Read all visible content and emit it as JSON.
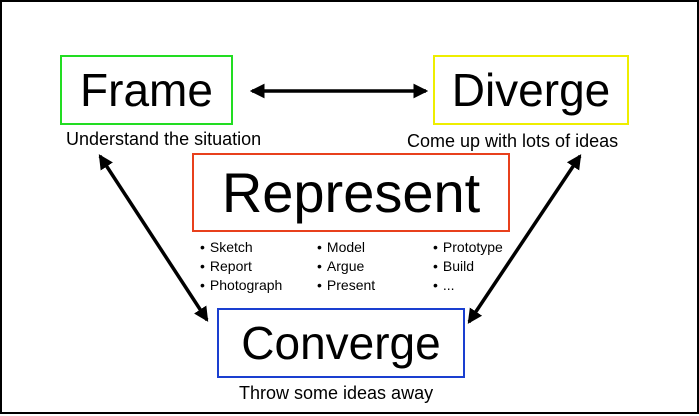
{
  "nodes": {
    "frame": {
      "title": "Frame",
      "caption": "Understand the situation"
    },
    "diverge": {
      "title": "Diverge",
      "caption": "Come up with lots of ideas"
    },
    "represent": {
      "title": "Represent",
      "columns": [
        [
          "Sketch",
          "Report",
          "Photograph"
        ],
        [
          "Model",
          "Argue",
          "Present"
        ],
        [
          "Prototype",
          "Build",
          "..."
        ]
      ]
    },
    "converge": {
      "title": "Converge",
      "caption": "Throw some ideas away"
    }
  },
  "edges": [
    {
      "from": "frame",
      "to": "diverge",
      "direction": "both"
    },
    {
      "from": "frame",
      "to": "converge",
      "direction": "both"
    },
    {
      "from": "diverge",
      "to": "converge",
      "direction": "both"
    }
  ],
  "colors": {
    "frame_border": "#22dd22",
    "diverge_border": "#eeee00",
    "represent_border": "#e8401c",
    "converge_border": "#1a3fd0",
    "arrow": "#000000"
  }
}
